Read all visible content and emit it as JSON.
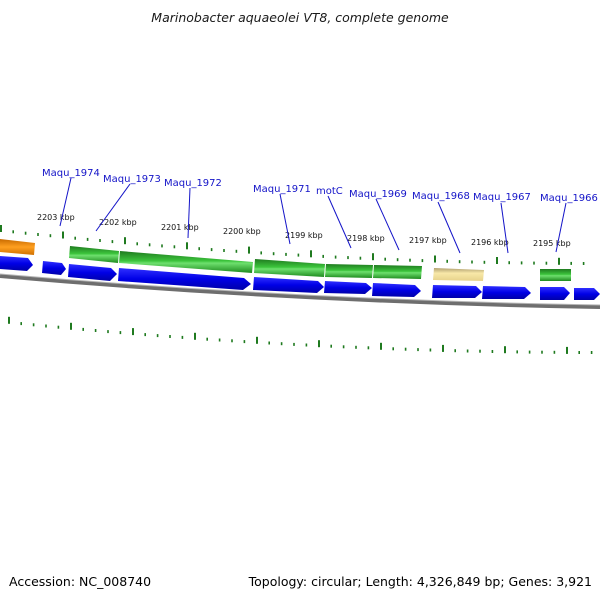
{
  "title": "Marinobacter aquaeolei VT8, complete genome",
  "accession": "Accession: NC_008740",
  "summary": "Topology: circular; Length: 4,326,849 bp; Genes: 3,921",
  "kbp_labels": [
    "2203 kbp",
    "2202 kbp",
    "2201 kbp",
    "2200 kbp",
    "2199 kbp",
    "2198 kbp",
    "2197 kbp",
    "2196 kbp",
    "2195 kbp"
  ],
  "gene_labels": [
    "Maqu_1974",
    "Maqu_1973",
    "Maqu_1972",
    "Maqu_1971",
    "motC",
    "Maqu_1969",
    "Maqu_1968",
    "Maqu_1967",
    "Maqu_1966"
  ],
  "colors": {
    "cds": "#0a0ae6",
    "gene_green": "#2e9a2e",
    "gene_orange": "#f08a00",
    "gene_yellow": "#eed98a",
    "backbone": "#7a7a7a",
    "tick": "#1f7a1f",
    "gene_label": "#1414c8"
  }
}
